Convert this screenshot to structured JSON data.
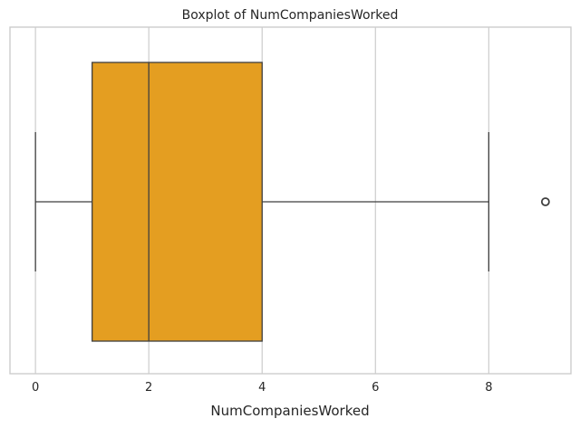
{
  "chart_data": {
    "type": "boxplot",
    "title": "Boxplot of NumCompaniesWorked",
    "xlabel": "NumCompaniesWorked",
    "ylabel": "",
    "xlim": [
      -0.45,
      9.45
    ],
    "xticks": [
      0,
      2,
      4,
      6,
      8
    ],
    "grid": true,
    "box_color": "#E49E21",
    "line_color": "#3f3f3f",
    "stats": {
      "whisker_low": 0,
      "q1": 1,
      "median": 2,
      "q3": 4,
      "whisker_high": 8,
      "outliers": [
        9
      ]
    }
  }
}
